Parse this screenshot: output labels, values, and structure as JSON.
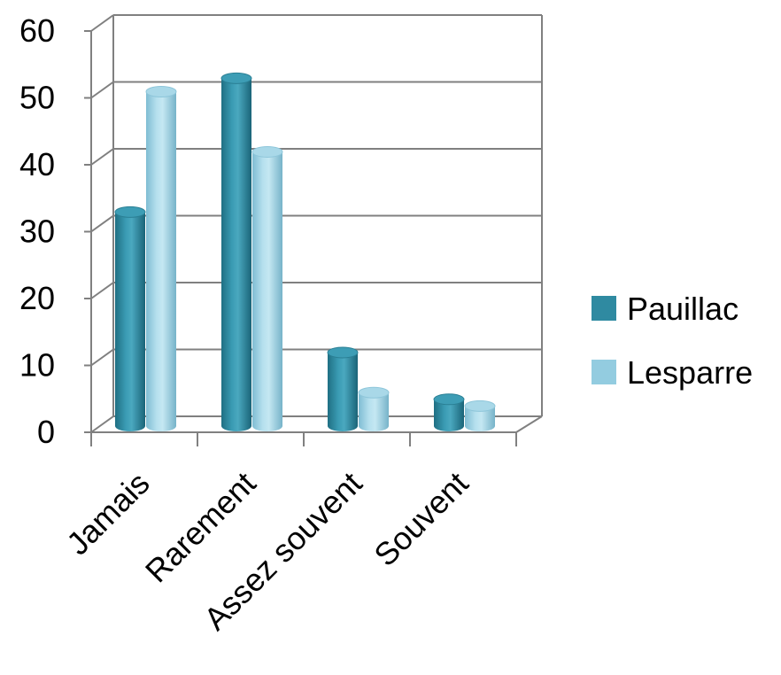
{
  "chart_data": {
    "type": "bar",
    "style": "3d-cylinder",
    "categories": [
      "Jamais",
      "Rarement",
      "Assez souvent",
      "Souvent"
    ],
    "series": [
      {
        "name": "Pauillac",
        "values": [
          32,
          52,
          11,
          4
        ],
        "color": "#2f8aa1"
      },
      {
        "name": "Lesparre",
        "values": [
          50,
          41,
          5,
          3
        ],
        "color": "#93cce0"
      }
    ],
    "y_ticks": [
      "0",
      "10",
      "20",
      "30",
      "40",
      "50",
      "60"
    ],
    "ylim": [
      0,
      60
    ],
    "grid": true,
    "legend_position": "right"
  }
}
